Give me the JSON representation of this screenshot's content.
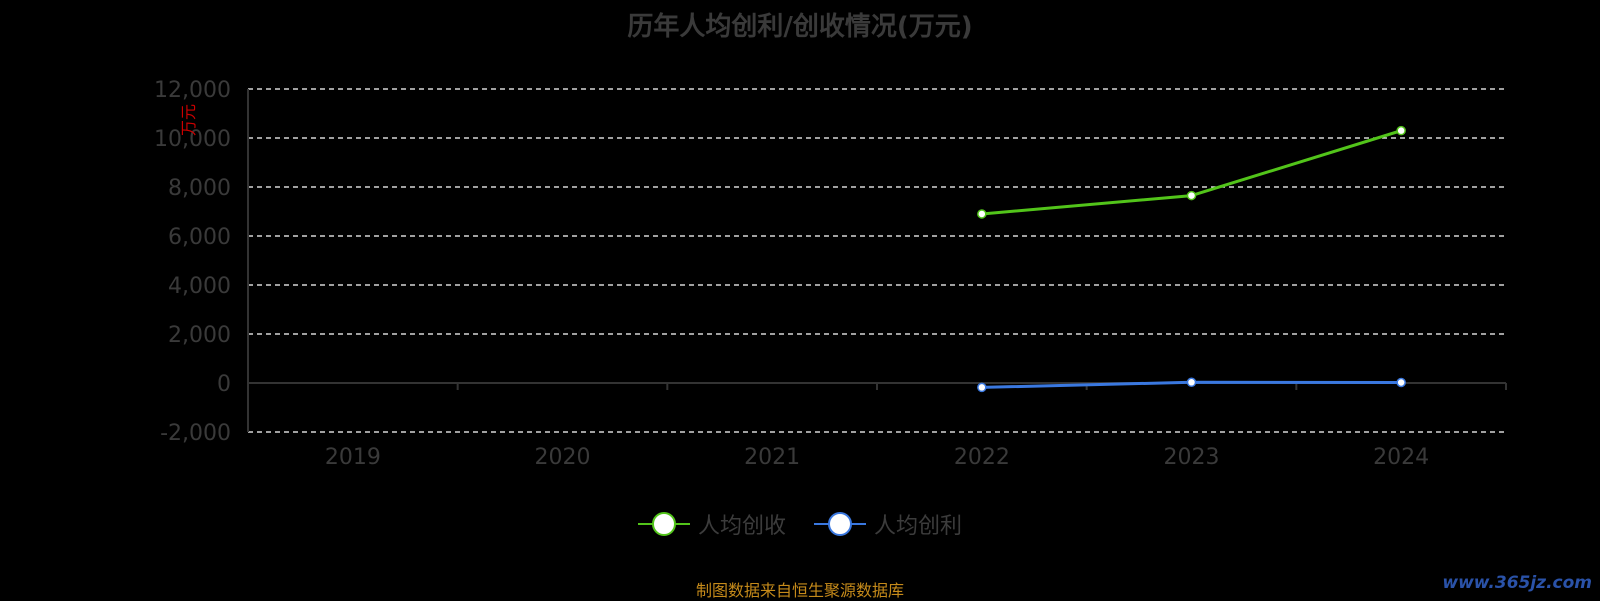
{
  "colors": {
    "background": "#000000",
    "grid": "#ffffff",
    "axis": "#333333",
    "tick_text": "#3a3a3a",
    "unit_label": "#cc0000",
    "source_text": "#c58a1a",
    "watermark": "#2a52a8"
  },
  "chart_data": {
    "type": "line",
    "title": "历年人均创利/创收情况(万元)",
    "ylabel": "万元",
    "categories": [
      "2019",
      "2020",
      "2021",
      "2022",
      "2023",
      "2024"
    ],
    "ylim": [
      -2000,
      12000
    ],
    "yticks": [
      -2000,
      0,
      2000,
      4000,
      6000,
      8000,
      10000,
      12000
    ],
    "ytick_labels": [
      "-2,000",
      "0",
      "2,000",
      "4,000",
      "6,000",
      "8,000",
      "10,000",
      "12,000"
    ],
    "grid": true,
    "legend_position": "bottom-center",
    "series": [
      {
        "name": "人均创收",
        "color": "#52c41a",
        "values": [
          null,
          null,
          null,
          6900,
          7650,
          10300
        ]
      },
      {
        "name": "人均创利",
        "color": "#3a78e0",
        "values": [
          null,
          null,
          null,
          -180,
          30,
          20
        ]
      }
    ]
  },
  "footer": {
    "source": "制图数据来自恒生聚源数据库",
    "watermark": "www.365jz.com"
  }
}
